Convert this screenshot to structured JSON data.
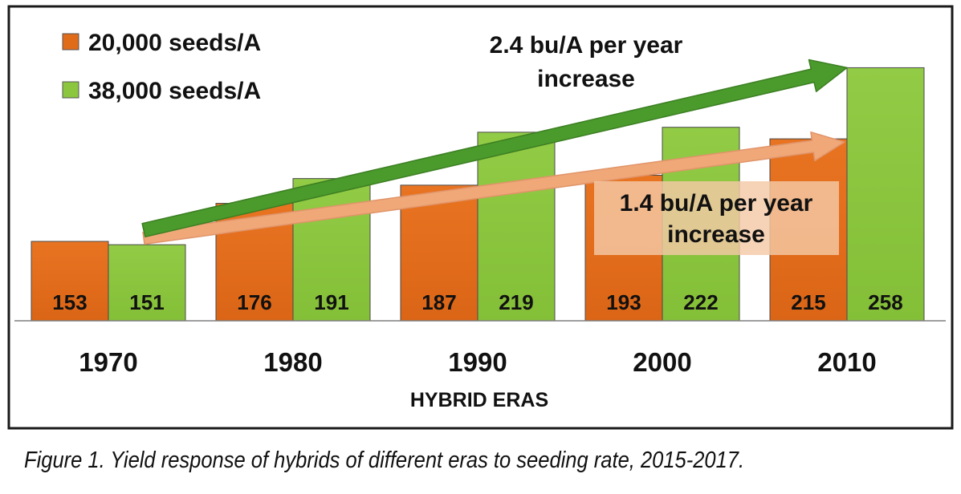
{
  "chart_data": {
    "type": "bar",
    "title": "",
    "xlabel": "HYBRID ERAS",
    "ylabel": "",
    "categories": [
      "1970",
      "1980",
      "1990",
      "2000",
      "2010"
    ],
    "series": [
      {
        "name": "20,000 seeds/A",
        "color": "#e06c1a",
        "values": [
          153,
          176,
          187,
          193,
          215
        ]
      },
      {
        "name": "38,000 seeds/A",
        "color": "#8cc63f",
        "values": [
          151,
          191,
          219,
          222,
          258
        ]
      }
    ],
    "ylim": [
      105,
      265
    ],
    "grid": false,
    "legend": "top-left",
    "annotations": [
      {
        "text_line1": "2.4 bu/A per year",
        "text_line2": "increase",
        "color": "#4a9a2c",
        "series": "38,000 seeds/A"
      },
      {
        "text_line1": "1.4 bu/A per year",
        "text_line2": "increase",
        "color": "#f0a878",
        "series": "20,000 seeds/A"
      }
    ]
  },
  "caption": "Figure 1. Yield response of hybrids of different eras to seeding rate, 2015-2017."
}
